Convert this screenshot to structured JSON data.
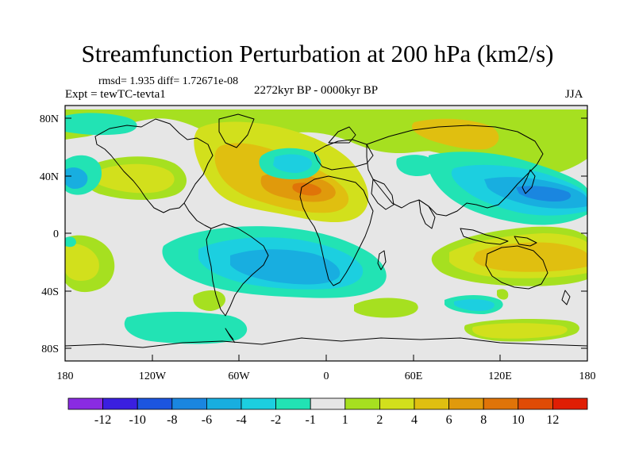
{
  "title": "Streamfunction Perturbation at 200 hPa (km2/s)",
  "stats": "rmsd= 1.935 diff= 1.72671e-08",
  "experiment": "Expt = tewTC-tevta1",
  "period": "2272kyr BP - 0000kyr BP",
  "season": "JJA",
  "lat_labels": [
    "80N",
    "40N",
    "0",
    "40S",
    "80S"
  ],
  "lon_labels": [
    "180",
    "120W",
    "60W",
    "0",
    "60E",
    "120E",
    "180"
  ],
  "colorbar": {
    "colors": [
      "#8a2be2",
      "#3a1fe0",
      "#1c55e0",
      "#1a86e0",
      "#18aee0",
      "#1ccfe0",
      "#22e3b4",
      "#e6e6e6",
      "#a6e020",
      "#d2e01c",
      "#e0bf10",
      "#e09a0c",
      "#e07408",
      "#e04b06",
      "#e01e04"
    ],
    "labels": [
      "-12",
      "-10",
      "-8",
      "-6",
      "-4",
      "-2",
      "-1",
      "1",
      "2",
      "4",
      "6",
      "8",
      "10",
      "12"
    ]
  },
  "field_colors": {
    "neutral": "#e6e6e6",
    "pos1": "#a6e020",
    "pos2": "#d2e01c",
    "pos3": "#e0bf10",
    "pos4": "#e09a0c",
    "pos5": "#e07408",
    "neg1": "#22e3b4",
    "neg2": "#1ccfe0",
    "neg3": "#18aee0",
    "neg4": "#1a86e0"
  }
}
